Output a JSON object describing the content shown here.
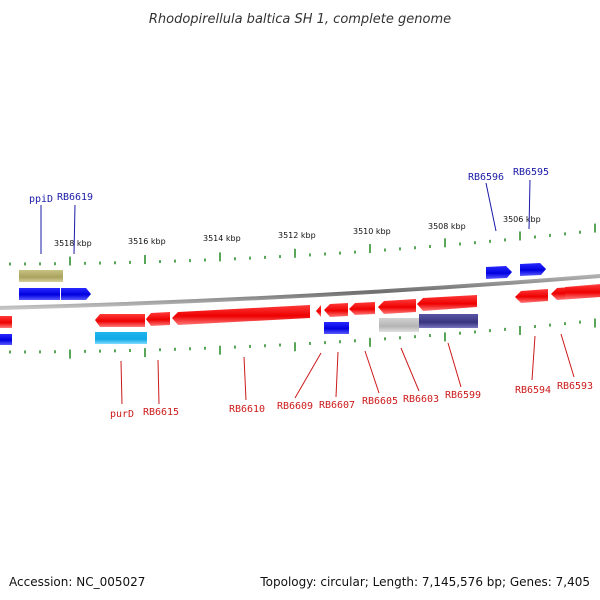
{
  "title": "Rhodopirellula baltica SH 1, complete genome",
  "colors": {
    "backbone": "#8a8a8a",
    "tick": "#2f8f2f",
    "forward_gene": "#0000ee",
    "forward_label": "#1a1aa6",
    "reverse_gene": "#ee0000",
    "reverse_label": "#cc1a1a",
    "olive_feature": "#b3ad6a",
    "cyan_feature": "#1fb6ee",
    "gray_feature": "#bdbdbd",
    "navy_feature": "#3f3a87"
  },
  "scale": {
    "ticks": [
      "3518 kbp",
      "3516 kbp",
      "3514 kbp",
      "3512 kbp",
      "3510 kbp",
      "3508 kbp",
      "3506 kbp"
    ]
  },
  "upper_strand_labels": [
    "ppiD",
    "RB6619",
    "RB6596",
    "RB6595"
  ],
  "lower_strand_labels": [
    "purD",
    "RB6615",
    "RB6610",
    "RB6609",
    "RB6607",
    "RB6605",
    "RB6603",
    "RB6599",
    "RB6594",
    "RB6593"
  ],
  "footer": {
    "accession": "Accession: NC_005027",
    "topology": "Topology: circular; Length: 7,145,576 bp; Genes: 7,405"
  }
}
